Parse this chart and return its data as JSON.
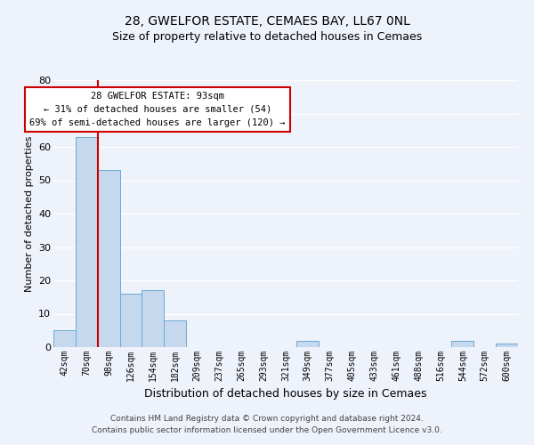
{
  "title1": "28, GWELFOR ESTATE, CEMAES BAY, LL67 0NL",
  "title2": "Size of property relative to detached houses in Cemaes",
  "xlabel": "Distribution of detached houses by size in Cemaes",
  "ylabel": "Number of detached properties",
  "bar_labels": [
    "42sqm",
    "70sqm",
    "98sqm",
    "126sqm",
    "154sqm",
    "182sqm",
    "209sqm",
    "237sqm",
    "265sqm",
    "293sqm",
    "321sqm",
    "349sqm",
    "377sqm",
    "405sqm",
    "433sqm",
    "461sqm",
    "488sqm",
    "516sqm",
    "544sqm",
    "572sqm",
    "600sqm"
  ],
  "bar_values": [
    5,
    63,
    53,
    16,
    17,
    8,
    0,
    0,
    0,
    0,
    0,
    2,
    0,
    0,
    0,
    0,
    0,
    0,
    2,
    0,
    1
  ],
  "bar_color": "#c5d8ee",
  "bar_edge_color": "#6aaad4",
  "vline_color": "#cc0000",
  "annotation_text": "28 GWELFOR ESTATE: 93sqm\n← 31% of detached houses are smaller (54)\n69% of semi-detached houses are larger (120) →",
  "annotation_box_color": "white",
  "annotation_box_edge_color": "#cc0000",
  "ylim": [
    0,
    80
  ],
  "yticks": [
    0,
    10,
    20,
    30,
    40,
    50,
    60,
    70,
    80
  ],
  "footer1": "Contains HM Land Registry data © Crown copyright and database right 2024.",
  "footer2": "Contains public sector information licensed under the Open Government Licence v3.0.",
  "bg_color": "#eef2fa",
  "grid_color": "white",
  "title1_fontsize": 10,
  "title2_fontsize": 9,
  "xlabel_fontsize": 9,
  "ylabel_fontsize": 8,
  "tick_fontsize": 7,
  "annotation_fontsize": 7.5,
  "footer_fontsize": 6.5
}
